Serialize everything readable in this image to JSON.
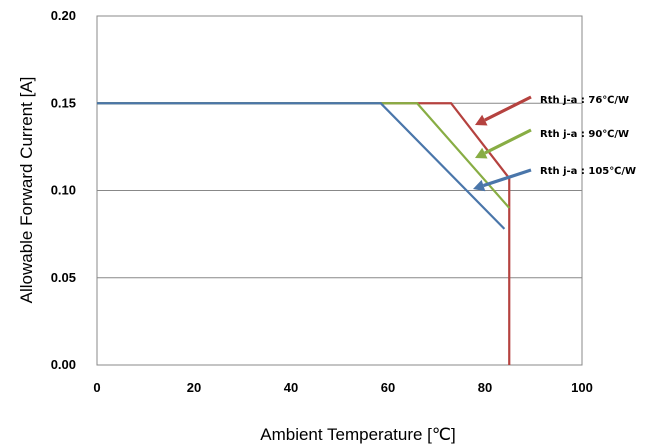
{
  "chart_data": {
    "type": "line",
    "xlabel": "Ambient Temperature [℃]",
    "ylabel": "Allowable Forward Current  [A]",
    "xlim": [
      0,
      100
    ],
    "ylim": [
      0,
      0.2
    ],
    "xticks": [
      "0",
      "20",
      "40",
      "60",
      "80",
      "100"
    ],
    "yticks": [
      "0.00",
      "0.05",
      "0.10",
      "0.15",
      "0.20"
    ],
    "grid": "horizontal",
    "series": [
      {
        "name": "Rth j-a : 76℃/W",
        "color": "#b5423f",
        "x": [
          0,
          73,
          85,
          85
        ],
        "y": [
          0.15,
          0.15,
          0.107,
          0.0
        ]
      },
      {
        "name": "Rth j-a : 90℃/W",
        "color": "#88ad44",
        "x": [
          0,
          66,
          85
        ],
        "y": [
          0.15,
          0.15,
          0.09
        ]
      },
      {
        "name": "Rth j-a : 105℃/W",
        "color": "#4a76aa",
        "x": [
          0,
          58.5,
          84
        ],
        "y": [
          0.15,
          0.15,
          0.078
        ]
      }
    ],
    "annotations": [
      {
        "text": "Rth j-a : 76℃/W",
        "series": 0
      },
      {
        "text": "Rth j-a : 90℃/W",
        "series": 1
      },
      {
        "text": "Rth j-a : 105℃/W",
        "series": 2
      }
    ]
  }
}
